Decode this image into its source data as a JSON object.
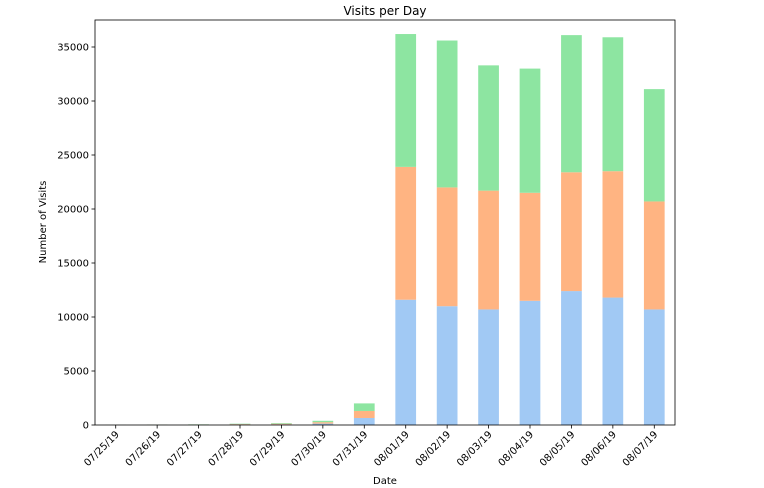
{
  "chart_data": {
    "type": "bar",
    "stacked": true,
    "title": "Visits per Day",
    "xlabel": "Date",
    "ylabel": "Number of Visits",
    "ylim": [
      0,
      37500
    ],
    "yticks": [
      0,
      5000,
      10000,
      15000,
      20000,
      25000,
      30000,
      35000
    ],
    "grid": false,
    "categories": [
      "07/25/19",
      "07/26/19",
      "07/27/19",
      "07/28/19",
      "07/29/19",
      "07/30/19",
      "07/31/19",
      "08/01/19",
      "08/02/19",
      "08/03/19",
      "08/04/19",
      "08/05/19",
      "08/06/19",
      "08/07/19"
    ],
    "series": [
      {
        "color": "#a1c9f4",
        "values": [
          5,
          15,
          20,
          40,
          60,
          130,
          650,
          11600,
          11000,
          10700,
          11500,
          12400,
          11800,
          10700
        ]
      },
      {
        "color": "#ffb482",
        "values": [
          5,
          15,
          20,
          40,
          60,
          130,
          650,
          12300,
          11000,
          11000,
          10000,
          11000,
          11700,
          10000
        ]
      },
      {
        "color": "#8de5a1",
        "values": [
          5,
          15,
          20,
          40,
          60,
          130,
          700,
          12300,
          13600,
          11600,
          11500,
          12700,
          12400,
          10400
        ]
      }
    ]
  }
}
